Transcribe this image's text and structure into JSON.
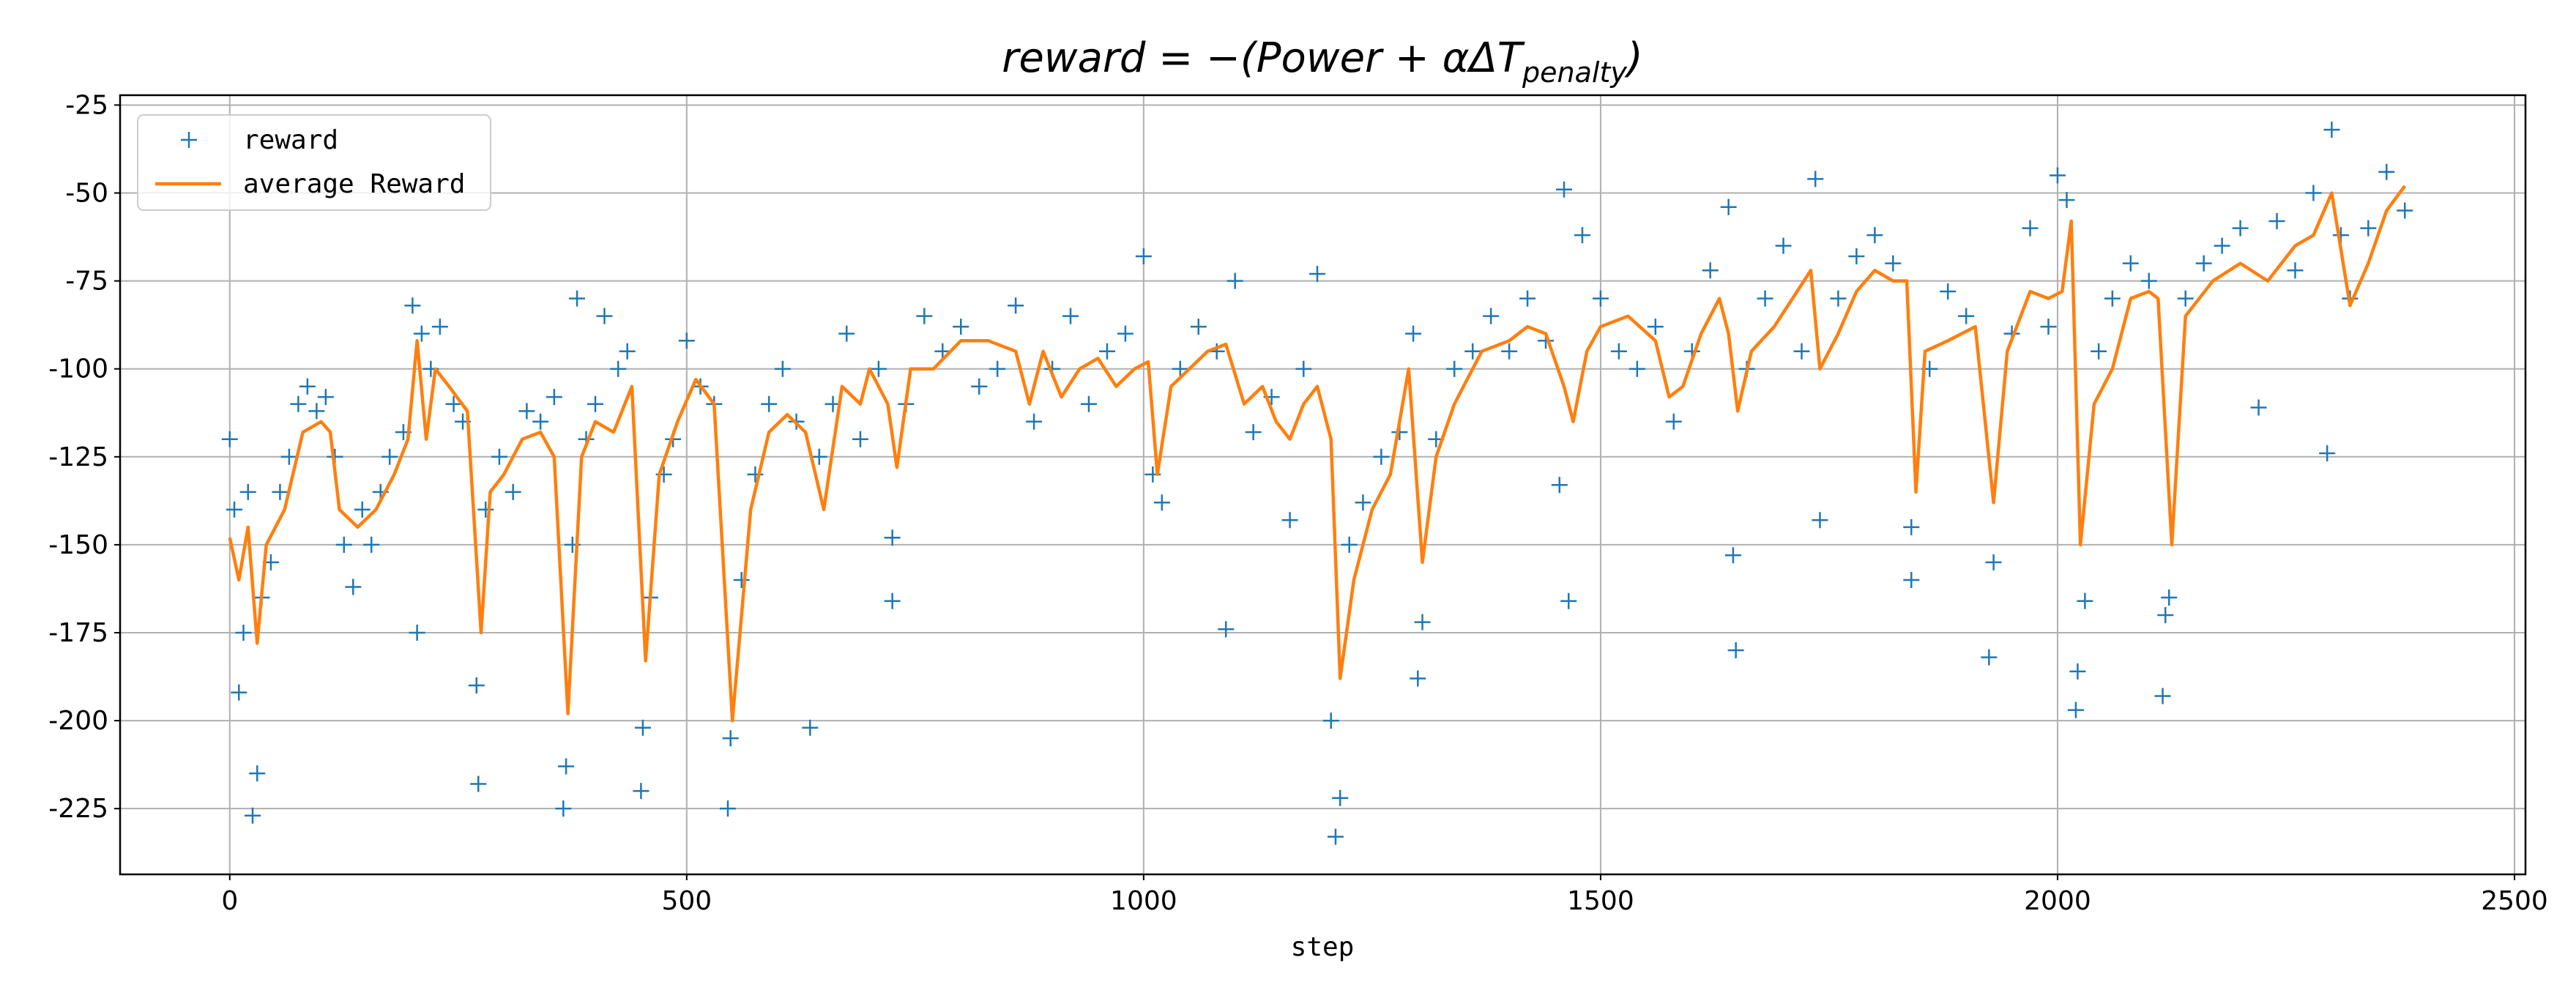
{
  "chart_data": {
    "type": "scatter_line",
    "title": {
      "main": "reward = −(Power + αΔT",
      "subscript": "penalty",
      "close": ")"
    },
    "xlabel": "step",
    "xlim": [
      -120,
      2512
    ],
    "ylim": [
      -243.7,
      -22.2
    ],
    "xticks": [
      0,
      500,
      1000,
      1500,
      2000,
      2500
    ],
    "yticks": [
      -225,
      -200,
      -175,
      -150,
      -125,
      -100,
      -75,
      -50,
      -25
    ],
    "grid": true,
    "legend": "upper left",
    "series": [
      {
        "name": "reward",
        "kind": "marker",
        "color": "#1f77b4",
        "x": [
          0,
          5,
          10,
          15,
          20,
          25,
          30,
          35,
          45,
          55,
          65,
          75,
          85,
          95,
          105,
          115,
          125,
          135,
          145,
          155,
          165,
          175,
          190,
          200,
          205,
          210,
          220,
          230,
          245,
          255,
          270,
          272,
          280,
          295,
          310,
          325,
          340,
          355,
          365,
          368,
          375,
          380,
          390,
          400,
          410,
          425,
          435,
          450,
          452,
          460,
          475,
          485,
          500,
          515,
          530,
          545,
          548,
          560,
          575,
          590,
          605,
          620,
          635,
          645,
          660,
          675,
          690,
          710,
          725,
          725,
          740,
          760,
          780,
          800,
          820,
          840,
          860,
          880,
          900,
          920,
          940,
          960,
          980,
          1000,
          1010,
          1020,
          1040,
          1060,
          1080,
          1090,
          1100,
          1120,
          1140,
          1160,
          1175,
          1190,
          1205,
          1210,
          1215,
          1225,
          1240,
          1260,
          1280,
          1295,
          1300,
          1305,
          1320,
          1340,
          1360,
          1380,
          1400,
          1420,
          1440,
          1455,
          1460,
          1465,
          1480,
          1500,
          1520,
          1540,
          1560,
          1580,
          1600,
          1620,
          1640,
          1645,
          1648,
          1660,
          1680,
          1700,
          1720,
          1735,
          1740,
          1760,
          1780,
          1800,
          1820,
          1840,
          1840,
          1860,
          1880,
          1900,
          1925,
          1930,
          1950,
          1970,
          1990,
          2000,
          2010,
          2020,
          2022,
          2030,
          2045,
          2060,
          2080,
          2100,
          2115,
          2118,
          2122,
          2140,
          2160,
          2180,
          2200,
          2220,
          2240,
          2260,
          2280,
          2295,
          2300,
          2310,
          2320,
          2340,
          2360,
          2380
        ],
        "values": [
          -120,
          -140,
          -192,
          -175,
          -135,
          -227,
          -215,
          -165,
          -155,
          -135,
          -125,
          -110,
          -105,
          -112,
          -108,
          -125,
          -150,
          -162,
          -140,
          -150,
          -135,
          -125,
          -118,
          -82,
          -175,
          -90,
          -100,
          -88,
          -110,
          -115,
          -190,
          -218,
          -140,
          -125,
          -135,
          -112,
          -115,
          -108,
          -225,
          -213,
          -150,
          -80,
          -120,
          -110,
          -85,
          -100,
          -95,
          -220,
          -202,
          -165,
          -130,
          -120,
          -92,
          -105,
          -110,
          -225,
          -205,
          -160,
          -130,
          -110,
          -100,
          -115,
          -202,
          -125,
          -110,
          -90,
          -120,
          -100,
          -148,
          -166,
          -110,
          -85,
          -95,
          -88,
          -105,
          -100,
          -82,
          -115,
          -100,
          -85,
          -110,
          -95,
          -90,
          -68,
          -130,
          -138,
          -100,
          -88,
          -95,
          -174,
          -75,
          -118,
          -108,
          -143,
          -100,
          -73,
          -200,
          -233,
          -222,
          -150,
          -138,
          -125,
          -118,
          -90,
          -188,
          -172,
          -120,
          -100,
          -95,
          -85,
          -95,
          -80,
          -92,
          -133,
          -49,
          -166,
          -62,
          -80,
          -95,
          -100,
          -88,
          -115,
          -95,
          -72,
          -54,
          -153,
          -180,
          -100,
          -80,
          -65,
          -95,
          -46,
          -143,
          -80,
          -68,
          -62,
          -70,
          -160,
          -145,
          -100,
          -78,
          -85,
          -182,
          -155,
          -90,
          -60,
          -88,
          -45,
          -52,
          -197,
          -186,
          -166,
          -95,
          -80,
          -70,
          -75,
          -193,
          -170,
          -165,
          -80,
          -70,
          -65,
          -60,
          -111,
          -58,
          -72,
          -50,
          -124,
          -32,
          -62,
          -80,
          -60,
          -44,
          -55
        ]
      },
      {
        "name": "average Reward",
        "kind": "line",
        "color": "#ff7f0e",
        "x": [
          0,
          10,
          20,
          30,
          40,
          60,
          80,
          100,
          110,
          120,
          140,
          160,
          180,
          195,
          205,
          215,
          225,
          240,
          260,
          275,
          285,
          300,
          320,
          340,
          355,
          370,
          385,
          400,
          420,
          440,
          455,
          470,
          490,
          510,
          530,
          550,
          570,
          590,
          610,
          630,
          650,
          670,
          690,
          700,
          720,
          730,
          745,
          770,
          800,
          830,
          860,
          875,
          890,
          910,
          930,
          950,
          970,
          990,
          1005,
          1015,
          1030,
          1050,
          1070,
          1090,
          1110,
          1130,
          1145,
          1160,
          1175,
          1190,
          1205,
          1215,
          1230,
          1250,
          1270,
          1290,
          1305,
          1320,
          1340,
          1370,
          1400,
          1420,
          1440,
          1460,
          1470,
          1485,
          1500,
          1530,
          1560,
          1575,
          1590,
          1610,
          1630,
          1640,
          1650,
          1665,
          1690,
          1710,
          1730,
          1740,
          1760,
          1780,
          1800,
          1820,
          1835,
          1845,
          1855,
          1880,
          1910,
          1930,
          1945,
          1970,
          1990,
          2005,
          2015,
          2025,
          2040,
          2060,
          2080,
          2100,
          2110,
          2125,
          2140,
          2170,
          2200,
          2230,
          2260,
          2280,
          2300,
          2320,
          2340,
          2360,
          2380
        ],
        "values": [
          -148,
          -160,
          -145,
          -178,
          -150,
          -140,
          -118,
          -115,
          -118,
          -140,
          -145,
          -140,
          -130,
          -120,
          -92,
          -120,
          -100,
          -105,
          -112,
          -175,
          -135,
          -130,
          -120,
          -118,
          -125,
          -198,
          -125,
          -115,
          -118,
          -105,
          -183,
          -130,
          -115,
          -103,
          -110,
          -200,
          -140,
          -118,
          -113,
          -118,
          -140,
          -105,
          -110,
          -100,
          -110,
          -128,
          -100,
          -100,
          -92,
          -92,
          -95,
          -110,
          -95,
          -108,
          -100,
          -97,
          -105,
          -100,
          -98,
          -130,
          -105,
          -100,
          -95,
          -93,
          -110,
          -105,
          -115,
          -120,
          -110,
          -105,
          -120,
          -188,
          -160,
          -140,
          -130,
          -100,
          -155,
          -125,
          -110,
          -95,
          -92,
          -88,
          -90,
          -105,
          -115,
          -95,
          -88,
          -85,
          -92,
          -108,
          -105,
          -90,
          -80,
          -90,
          -112,
          -95,
          -88,
          -80,
          -72,
          -100,
          -90,
          -78,
          -72,
          -75,
          -75,
          -135,
          -95,
          -92,
          -88,
          -138,
          -95,
          -78,
          -80,
          -78,
          -58,
          -150,
          -110,
          -100,
          -80,
          -78,
          -80,
          -150,
          -85,
          -75,
          -70,
          -75,
          -65,
          -62,
          -50,
          -82,
          -70,
          -55,
          -48
        ]
      }
    ]
  }
}
